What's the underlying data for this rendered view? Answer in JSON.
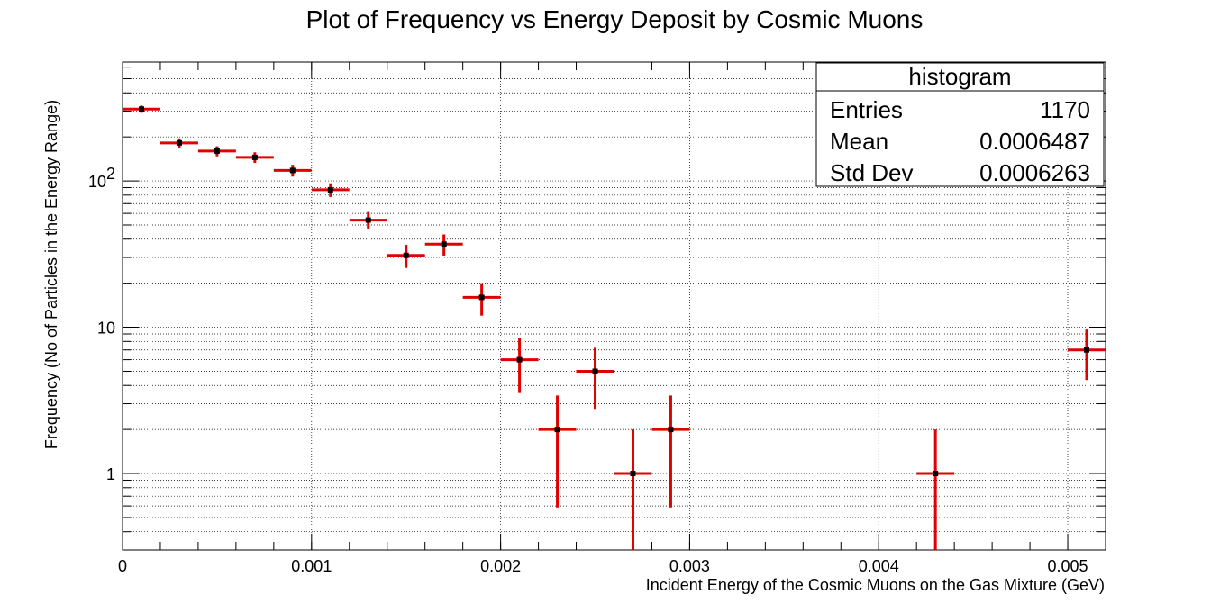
{
  "chart_data": {
    "type": "scatter",
    "title": "Plot of Frequency  vs Energy Deposit by Cosmic Muons",
    "xlabel": "Incident Energy of the Cosmic Muons on the Gas Mixture (GeV)",
    "ylabel": "Frequency (No of Particles in the Energy Range)",
    "xlim": [
      0,
      0.0052
    ],
    "ylim": [
      0.3,
      650
    ],
    "yscale": "log",
    "grid": true,
    "x_ticks": [
      {
        "value": 0,
        "label": "0"
      },
      {
        "value": 0.001,
        "label": "0.001"
      },
      {
        "value": 0.002,
        "label": "0.002"
      },
      {
        "value": 0.003,
        "label": "0.003"
      },
      {
        "value": 0.004,
        "label": "0.004"
      },
      {
        "value": 0.005,
        "label": "0.005"
      }
    ],
    "y_ticks": [
      {
        "value": 1,
        "label": "1"
      },
      {
        "value": 10,
        "label": "10"
      },
      {
        "value": 100,
        "label": "10",
        "sup": "2"
      }
    ],
    "bin_width": 0.0002,
    "series": [
      {
        "marker_color": "#000000",
        "error_color": "#e00000",
        "points": [
          {
            "x": 0.0001,
            "y": 310
          },
          {
            "x": 0.0003,
            "y": 182
          },
          {
            "x": 0.0005,
            "y": 160
          },
          {
            "x": 0.0007,
            "y": 145
          },
          {
            "x": 0.0009,
            "y": 118
          },
          {
            "x": 0.0011,
            "y": 87
          },
          {
            "x": 0.0013,
            "y": 54
          },
          {
            "x": 0.0015,
            "y": 31
          },
          {
            "x": 0.0017,
            "y": 37
          },
          {
            "x": 0.0019,
            "y": 16
          },
          {
            "x": 0.0021,
            "y": 6
          },
          {
            "x": 0.0023,
            "y": 2
          },
          {
            "x": 0.0025,
            "y": 5
          },
          {
            "x": 0.0027,
            "y": 1
          },
          {
            "x": 0.0029,
            "y": 2
          },
          {
            "x": 0.0043,
            "y": 1
          },
          {
            "x": 0.0051,
            "y": 7
          }
        ]
      }
    ],
    "stats_box": {
      "name": "histogram",
      "rows": [
        {
          "label": "Entries",
          "value": "1170"
        },
        {
          "label": "Mean",
          "value": "0.0006487"
        },
        {
          "label": "Std Dev",
          "value": "0.0006263"
        }
      ],
      "placement": "top-right"
    }
  }
}
